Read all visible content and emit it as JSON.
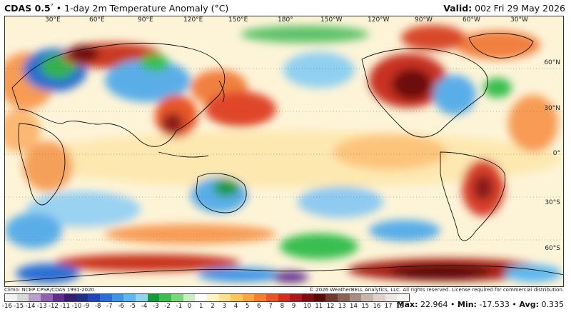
{
  "header": {
    "model": "CDAS 0.5",
    "degree": "°",
    "separator": "•",
    "title": "1-day 2m Temperature Anomaly (°C)",
    "valid_label": "Valid:",
    "valid_time": "00z Fri 29 May 2026"
  },
  "map": {
    "lon_labels": [
      "30°E",
      "60°E",
      "90°E",
      "120°E",
      "150°E",
      "180°",
      "150°W",
      "120°W",
      "90°W",
      "60°W",
      "30°W"
    ],
    "lat_labels": [
      "60°N",
      "30°N",
      "0°",
      "30°S",
      "60°S"
    ]
  },
  "footer": {
    "climo": "Climo: NCEP CPSR/CDAS 1991-2020",
    "copyright": "© 2026 WeatherBELL Analytics, LLC. All rights reserved. License required for commercial distribution."
  },
  "colorbar": {
    "ticks": [
      "-16",
      "-15",
      "-14",
      "-13",
      "-12",
      "-11",
      "-10",
      "-9",
      "-8",
      "-7",
      "-6",
      "-5",
      "-4",
      "-3",
      "-2",
      "-1",
      "0",
      "1",
      "2",
      "3",
      "4",
      "5",
      "6",
      "7",
      "8",
      "9",
      "10",
      "11",
      "12",
      "13",
      "14",
      "15",
      "16",
      "17",
      "18"
    ],
    "colors": [
      "#f2f2f2",
      "#d8d8d8",
      "#b7a1c9",
      "#8e62b0",
      "#5e2f8e",
      "#3b1d6e",
      "#1f2f86",
      "#2146b8",
      "#2b6fd6",
      "#3c95e6",
      "#5db8ef",
      "#95d3f2",
      "#139b39",
      "#39bf4f",
      "#7bd87a",
      "#c7efc2",
      "#ffffff",
      "#fff3c4",
      "#ffe08c",
      "#fdc55a",
      "#fba440",
      "#f57f2f",
      "#e85627",
      "#d22f21",
      "#ab1a1a",
      "#7e1010",
      "#5a0a0a",
      "#6e3a2a",
      "#8b6352",
      "#a78d81",
      "#c7b6ae",
      "#ddd1cc",
      "#ece6e4",
      "#f7f4f3"
    ]
  },
  "stats": {
    "max_label": "Max:",
    "max": "22.964",
    "min_label": "Min:",
    "min": "-17.533",
    "avg_label": "Avg:",
    "avg": "0.335",
    "sep": "•"
  }
}
